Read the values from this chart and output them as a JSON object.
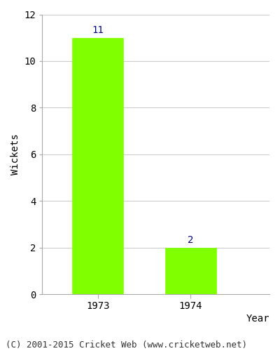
{
  "categories": [
    "1973",
    "1974"
  ],
  "values": [
    11,
    2
  ],
  "bar_color": "#7FFF00",
  "bar_edge_color": "#7FFF00",
  "title": "",
  "xlabel": "Year",
  "ylabel": "Wickets",
  "ylim": [
    0,
    12
  ],
  "yticks": [
    0,
    2,
    4,
    6,
    8,
    10,
    12
  ],
  "annotation_color": "#00008B",
  "annotation_fontsize": 10,
  "axis_label_fontsize": 10,
  "tick_fontsize": 10,
  "footer_text": "(C) 2001-2015 Cricket Web (www.cricketweb.net)",
  "footer_fontsize": 9,
  "background_color": "#ffffff",
  "grid_color": "#cccccc",
  "bar_width": 0.55
}
